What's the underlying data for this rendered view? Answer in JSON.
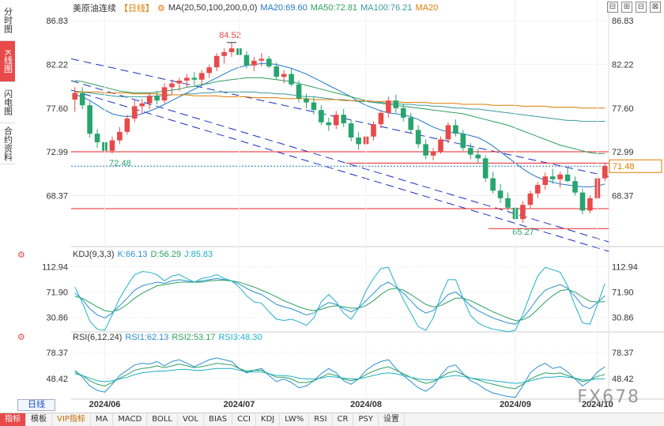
{
  "side_tabs": [
    {
      "label": "分时图",
      "active": false
    },
    {
      "label": "K线图",
      "active": true
    },
    {
      "label": "闪电图",
      "active": false
    },
    {
      "label": "合约资料",
      "active": false
    }
  ],
  "header": {
    "title": "美原油连续",
    "period": "【日线】",
    "gear_icon": "gear-icon",
    "ma_label": "MA(20,50,100,200,0,0)",
    "ma20": "MA20:69.60",
    "ma50": "MA50:72.81",
    "ma100": "MA100:76.21",
    "ma200": "MA20"
  },
  "window_tools": [
    "⊟",
    "⊞",
    "⊟",
    "⊠"
  ],
  "colors": {
    "up": "#e84a4a",
    "down": "#28a46e",
    "ma20": "#1e78c8",
    "ma50": "#2ca060",
    "ma100": "#3a9aa0",
    "ma200": "#e07b00",
    "channel": "#1a2fc0",
    "hline": "#e8262a",
    "price_box": "#e07b00",
    "k": "#2a8fd0",
    "d": "#2ca060",
    "j": "#1fb0c8"
  },
  "kdj": {
    "label": "KDJ(9,3,3)",
    "k": "K:66.13",
    "d": "D:56.29",
    "j": "J:85.83",
    "ticks": [
      "112.94",
      "71.90",
      "30.86"
    ]
  },
  "rsi": {
    "label": "RSI(6,12,24)",
    "r1": "RSI1:62.13",
    "r2": "RSI2:53.17",
    "r3": "RSI3:48.30",
    "ticks": [
      "78.37",
      "48.42"
    ]
  },
  "period_box": "日线",
  "toolbar": [
    {
      "label": "指标",
      "active": true,
      "vip": false
    },
    {
      "label": "模板",
      "active": false,
      "vip": false
    },
    {
      "label": "VIP指标",
      "active": false,
      "vip": true
    },
    {
      "label": "MA",
      "active": false,
      "vip": false
    },
    {
      "label": "MACD",
      "active": false,
      "vip": false
    },
    {
      "label": "BOLL",
      "active": false,
      "vip": false
    },
    {
      "label": "VOL",
      "active": false,
      "vip": false
    },
    {
      "label": "BIAS",
      "active": false,
      "vip": false
    },
    {
      "label": "CCI",
      "active": false,
      "vip": false
    },
    {
      "label": "KDJ",
      "active": false,
      "vip": false
    },
    {
      "label": "LW%",
      "active": false,
      "vip": false
    },
    {
      "label": "RSI",
      "active": false,
      "vip": false
    },
    {
      "label": "CR",
      "active": false,
      "vip": false
    },
    {
      "label": "PSY",
      "active": false,
      "vip": false
    },
    {
      "label": "设置",
      "active": false,
      "vip": false
    }
  ],
  "watermark": "FX678",
  "chart_data": {
    "type": "candlestick",
    "title": "美原油连续【日线】",
    "y_ticks": [
      "86.83",
      "82.22",
      "77.60",
      "72.99",
      "68.37"
    ],
    "ylim": [
      63.0,
      87.5
    ],
    "x_tick_labels": [
      "2024/06",
      "2024/07",
      "2024/08",
      "2024/09",
      "2024/10"
    ],
    "current_price": "71.48",
    "annotations": {
      "high": "84.52",
      "low_channel": "72.48",
      "low": "65.27"
    },
    "horizontal_levels": [
      73.0,
      71.8,
      67.0,
      64.9
    ],
    "channel_lines": [
      {
        "x0": 0,
        "y0": 82.8,
        "x1": 1,
        "y1": 70.4,
        "dashed": true
      },
      {
        "x0": 0,
        "y0": 80.5,
        "x1": 1,
        "y1": 63.5,
        "dashed": true
      },
      {
        "x0": 0,
        "y0": 79.5,
        "x1": 1,
        "y1": 62.5,
        "dashed": true
      }
    ],
    "candles": [
      [
        78.5,
        79.8,
        77.2,
        79.2
      ],
      [
        79.2,
        79.8,
        77.5,
        77.9
      ],
      [
        77.9,
        78.3,
        74.5,
        74.9
      ],
      [
        74.9,
        75.4,
        73.4,
        74.0
      ],
      [
        74.0,
        74.5,
        72.5,
        73.1
      ],
      [
        73.1,
        74.6,
        72.8,
        74.2
      ],
      [
        74.2,
        75.6,
        73.8,
        75.1
      ],
      [
        75.1,
        76.9,
        74.8,
        76.5
      ],
      [
        76.5,
        78.4,
        76.1,
        77.8
      ],
      [
        77.8,
        78.6,
        77.0,
        78.1
      ],
      [
        78.1,
        79.2,
        77.5,
        78.9
      ],
      [
        78.9,
        79.4,
        78.0,
        78.4
      ],
      [
        78.4,
        80.2,
        78.1,
        79.8
      ],
      [
        79.8,
        80.6,
        79.0,
        80.2
      ],
      [
        80.2,
        80.8,
        79.4,
        80.5
      ],
      [
        80.5,
        81.2,
        79.8,
        80.8
      ],
      [
        80.8,
        81.4,
        80.0,
        80.6
      ],
      [
        80.6,
        81.6,
        80.1,
        81.3
      ],
      [
        81.3,
        82.2,
        80.8,
        81.9
      ],
      [
        81.9,
        83.4,
        81.5,
        83.1
      ],
      [
        83.1,
        83.9,
        82.3,
        83.5
      ],
      [
        83.5,
        84.52,
        83.0,
        83.9
      ],
      [
        83.9,
        84.2,
        82.9,
        83.2
      ],
      [
        83.2,
        83.6,
        81.8,
        82.1
      ],
      [
        82.1,
        83.0,
        81.5,
        82.6
      ],
      [
        82.6,
        83.4,
        82.0,
        82.8
      ],
      [
        82.8,
        83.1,
        81.8,
        82.0
      ],
      [
        82.0,
        82.4,
        80.6,
        80.9
      ],
      [
        80.9,
        81.6,
        80.2,
        81.2
      ],
      [
        81.2,
        81.8,
        79.9,
        80.1
      ],
      [
        80.1,
        80.5,
        78.2,
        78.6
      ],
      [
        78.6,
        79.1,
        77.6,
        78.2
      ],
      [
        78.2,
        78.8,
        76.9,
        77.4
      ],
      [
        77.4,
        77.9,
        75.8,
        76.1
      ],
      [
        76.1,
        76.6,
        75.2,
        75.8
      ],
      [
        75.8,
        77.3,
        75.4,
        76.9
      ],
      [
        76.9,
        77.5,
        75.6,
        76.0
      ],
      [
        76.0,
        76.4,
        74.1,
        74.5
      ],
      [
        74.5,
        75.1,
        73.2,
        73.8
      ],
      [
        73.8,
        74.9,
        73.5,
        74.6
      ],
      [
        74.6,
        76.2,
        74.2,
        75.9
      ],
      [
        75.9,
        77.4,
        75.5,
        77.1
      ],
      [
        77.1,
        78.8,
        76.6,
        78.4
      ],
      [
        78.4,
        79.0,
        77.1,
        77.6
      ],
      [
        77.6,
        78.0,
        76.2,
        76.6
      ],
      [
        76.6,
        77.1,
        75.0,
        75.3
      ],
      [
        75.3,
        75.8,
        73.4,
        73.8
      ],
      [
        73.8,
        74.3,
        72.2,
        72.6
      ],
      [
        72.6,
        73.4,
        72.1,
        73.0
      ],
      [
        73.0,
        74.6,
        72.8,
        74.3
      ],
      [
        74.3,
        76.1,
        73.9,
        75.8
      ],
      [
        75.8,
        76.4,
        74.6,
        74.9
      ],
      [
        74.9,
        75.3,
        73.1,
        73.4
      ],
      [
        73.4,
        73.9,
        72.2,
        72.7
      ],
      [
        72.7,
        73.3,
        71.8,
        72.3
      ],
      [
        72.3,
        72.6,
        69.8,
        70.2
      ],
      [
        70.2,
        70.9,
        68.6,
        68.9
      ],
      [
        68.9,
        69.6,
        67.6,
        68.1
      ],
      [
        68.1,
        68.7,
        66.8,
        67.1
      ],
      [
        67.1,
        67.6,
        65.27,
        65.9
      ],
      [
        65.9,
        67.8,
        65.5,
        67.4
      ],
      [
        67.4,
        68.9,
        67.0,
        68.6
      ],
      [
        68.6,
        69.8,
        68.1,
        69.5
      ],
      [
        69.5,
        70.8,
        69.0,
        70.4
      ],
      [
        70.4,
        71.2,
        69.6,
        70.1
      ],
      [
        70.1,
        70.9,
        69.2,
        70.6
      ],
      [
        70.6,
        71.3,
        69.8,
        69.9
      ],
      [
        69.9,
        70.4,
        68.4,
        68.7
      ],
      [
        68.7,
        69.1,
        66.4,
        66.8
      ],
      [
        66.8,
        68.4,
        66.5,
        68.1
      ],
      [
        68.1,
        70.5,
        67.9,
        70.2
      ],
      [
        70.2,
        71.8,
        69.9,
        71.48
      ]
    ],
    "ma_series": [
      {
        "name": "MA20",
        "values": [
          79.0,
          78.8,
          78.4,
          77.9,
          77.4,
          77.0,
          76.8,
          76.7,
          76.8,
          77.0,
          77.3,
          77.6,
          78.0,
          78.4,
          78.8,
          79.2,
          79.6,
          80.0,
          80.4,
          80.8,
          81.2,
          81.6,
          81.9,
          82.1,
          82.2,
          82.3,
          82.3,
          82.2,
          82.0,
          81.8,
          81.5,
          81.2,
          80.8,
          80.4,
          80.0,
          79.6,
          79.2,
          78.8,
          78.3,
          77.9,
          77.6,
          77.3,
          77.1,
          77.0,
          76.9,
          76.7,
          76.4,
          76.0,
          75.6,
          75.3,
          75.1,
          75.0,
          74.9,
          74.7,
          74.5,
          74.1,
          73.6,
          73.0,
          72.4,
          71.8,
          71.2,
          70.7,
          70.3,
          70.0,
          69.8,
          69.6,
          69.5,
          69.4,
          69.3,
          69.3,
          69.4,
          69.6
        ]
      },
      {
        "name": "MA50",
        "values": [
          80.5,
          80.4,
          80.2,
          80.0,
          79.8,
          79.6,
          79.4,
          79.3,
          79.2,
          79.2,
          79.2,
          79.3,
          79.4,
          79.5,
          79.6,
          79.8,
          79.9,
          80.1,
          80.2,
          80.4,
          80.5,
          80.6,
          80.7,
          80.8,
          80.8,
          80.8,
          80.7,
          80.6,
          80.5,
          80.4,
          80.2,
          80.0,
          79.8,
          79.6,
          79.4,
          79.2,
          79.0,
          78.8,
          78.6,
          78.4,
          78.2,
          78.1,
          78.0,
          77.9,
          77.8,
          77.7,
          77.6,
          77.5,
          77.4,
          77.3,
          77.2,
          77.1,
          77.0,
          76.8,
          76.6,
          76.4,
          76.2,
          76.0,
          75.8,
          75.5,
          75.2,
          74.9,
          74.6,
          74.3,
          74.0,
          73.7,
          73.5,
          73.3,
          73.1,
          72.9,
          72.8,
          72.81
        ]
      },
      {
        "name": "MA100",
        "values": [
          79.4,
          79.3,
          79.2,
          79.1,
          79.0,
          78.9,
          78.8,
          78.8,
          78.8,
          78.8,
          78.8,
          78.9,
          78.9,
          79.0,
          79.0,
          79.1,
          79.1,
          79.2,
          79.2,
          79.3,
          79.3,
          79.3,
          79.3,
          79.3,
          79.3,
          79.2,
          79.2,
          79.1,
          79.1,
          79.0,
          78.9,
          78.8,
          78.8,
          78.7,
          78.6,
          78.5,
          78.5,
          78.4,
          78.3,
          78.3,
          78.2,
          78.2,
          78.1,
          78.1,
          78.0,
          78.0,
          77.9,
          77.9,
          77.8,
          77.8,
          77.7,
          77.6,
          77.6,
          77.5,
          77.5,
          77.4,
          77.3,
          77.2,
          77.1,
          77.0,
          76.9,
          76.8,
          76.7,
          76.6,
          76.5,
          76.4,
          76.3,
          76.3,
          76.2,
          76.2,
          76.2,
          76.21
        ]
      },
      {
        "name": "MA200",
        "values": [
          79.3,
          79.3,
          79.3,
          79.3,
          79.2,
          79.2,
          79.2,
          79.2,
          79.1,
          79.1,
          79.1,
          79.1,
          79.0,
          79.0,
          79.0,
          79.0,
          78.9,
          78.9,
          78.9,
          78.9,
          78.8,
          78.8,
          78.8,
          78.8,
          78.7,
          78.7,
          78.7,
          78.7,
          78.6,
          78.6,
          78.6,
          78.6,
          78.5,
          78.5,
          78.5,
          78.5,
          78.4,
          78.4,
          78.4,
          78.4,
          78.3,
          78.3,
          78.3,
          78.3,
          78.2,
          78.2,
          78.2,
          78.2,
          78.1,
          78.1,
          78.1,
          78.1,
          78.0,
          78.0,
          78.0,
          78.0,
          77.9,
          77.9,
          77.9,
          77.9,
          77.8,
          77.8,
          77.8,
          77.8,
          77.7,
          77.7,
          77.7,
          77.7,
          77.6,
          77.6,
          77.6,
          77.6
        ]
      }
    ],
    "kdj_series": {
      "ylim": [
        10,
        125
      ],
      "K": [
        70,
        60,
        45,
        35,
        30,
        38,
        50,
        62,
        75,
        82,
        85,
        88,
        86,
        90,
        92,
        90,
        88,
        90,
        92,
        94,
        92,
        90,
        85,
        78,
        72,
        68,
        60,
        52,
        48,
        45,
        40,
        35,
        38,
        48,
        55,
        52,
        45,
        40,
        46,
        58,
        70,
        82,
        88,
        80,
        70,
        58,
        45,
        38,
        42,
        55,
        68,
        72,
        62,
        50,
        42,
        36,
        30,
        26,
        22,
        20,
        30,
        45,
        62,
        75,
        80,
        84,
        78,
        65,
        50,
        45,
        55,
        66.13
      ],
      "D": [
        65,
        62,
        55,
        48,
        42,
        40,
        44,
        52,
        62,
        70,
        76,
        82,
        84,
        86,
        88,
        88,
        88,
        88,
        90,
        91,
        91,
        90,
        88,
        84,
        80,
        75,
        70,
        64,
        58,
        53,
        48,
        44,
        42,
        44,
        48,
        50,
        48,
        46,
        46,
        50,
        58,
        68,
        76,
        78,
        75,
        68,
        60,
        52,
        48,
        50,
        56,
        62,
        62,
        58,
        52,
        46,
        40,
        35,
        30,
        26,
        27,
        33,
        44,
        56,
        66,
        74,
        76,
        72,
        64,
        57,
        56,
        56.29
      ],
      "J": [
        80,
        55,
        25,
        12,
        10,
        35,
        62,
        82,
        100,
        105,
        104,
        100,
        90,
        98,
        100,
        94,
        88,
        94,
        96,
        100,
        94,
        90,
        80,
        66,
        56,
        54,
        40,
        28,
        26,
        28,
        24,
        18,
        30,
        56,
        68,
        56,
        38,
        28,
        46,
        74,
        94,
        110,
        112,
        84,
        60,
        38,
        16,
        10,
        30,
        65,
        92,
        92,
        62,
        34,
        22,
        16,
        12,
        10,
        8,
        10,
        36,
        68,
        98,
        112,
        108,
        104,
        82,
        50,
        22,
        20,
        52,
        85.83
      ]
    },
    "rsi_series": {
      "ylim": [
        25,
        90
      ],
      "RSI1": [
        58,
        50,
        40,
        35,
        33,
        42,
        52,
        58,
        64,
        66,
        65,
        68,
        63,
        68,
        70,
        66,
        62,
        66,
        70,
        72,
        70,
        68,
        60,
        55,
        58,
        60,
        52,
        45,
        48,
        44,
        38,
        40,
        46,
        54,
        60,
        55,
        46,
        42,
        48,
        58,
        64,
        68,
        70,
        60,
        52,
        45,
        38,
        34,
        40,
        52,
        62,
        64,
        54,
        46,
        42,
        36,
        32,
        30,
        28,
        27,
        40,
        55,
        62,
        66,
        60,
        62,
        56,
        48,
        40,
        46,
        56,
        62.13
      ],
      "RSI2": [
        56,
        52,
        46,
        42,
        40,
        44,
        49,
        53,
        58,
        60,
        61,
        63,
        61,
        63,
        65,
        63,
        61,
        62,
        64,
        66,
        65,
        64,
        60,
        57,
        58,
        58,
        54,
        50,
        50,
        48,
        44,
        44,
        46,
        50,
        54,
        52,
        48,
        46,
        48,
        53,
        57,
        60,
        62,
        58,
        54,
        50,
        46,
        43,
        45,
        50,
        55,
        57,
        53,
        49,
        47,
        44,
        42,
        40,
        38,
        37,
        42,
        48,
        52,
        55,
        54,
        55,
        52,
        49,
        45,
        47,
        51,
        53.17
      ],
      "RSI3": [
        54,
        52,
        49,
        46,
        45,
        46,
        48,
        50,
        53,
        55,
        56,
        57,
        57,
        58,
        59,
        59,
        58,
        58,
        59,
        60,
        60,
        60,
        58,
        56,
        56,
        56,
        54,
        52,
        52,
        51,
        49,
        48,
        48,
        49,
        51,
        50,
        49,
        48,
        48,
        50,
        52,
        54,
        55,
        54,
        52,
        50,
        48,
        47,
        47,
        49,
        51,
        52,
        51,
        49,
        48,
        47,
        46,
        45,
        44,
        43,
        44,
        46,
        48,
        50,
        50,
        51,
        50,
        49,
        47,
        47,
        48,
        48.3
      ]
    }
  }
}
